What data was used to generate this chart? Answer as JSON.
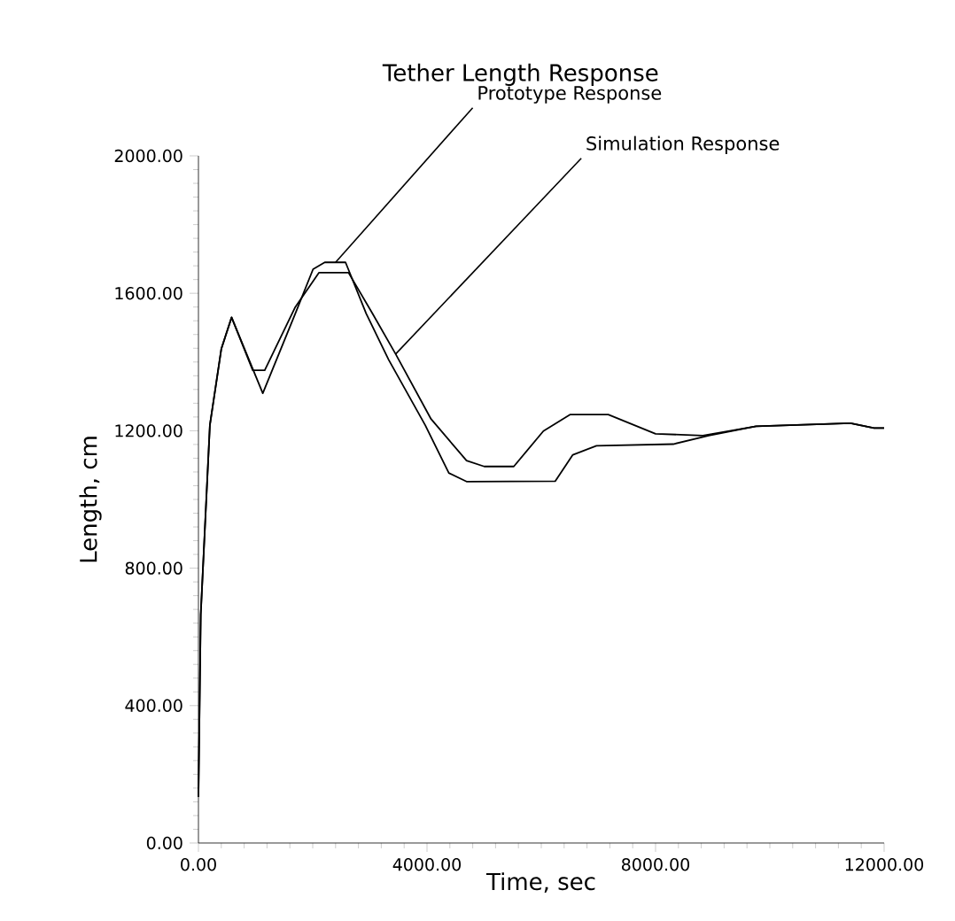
{
  "chart_data": {
    "type": "line",
    "title": "Tether Length Response",
    "xlabel": "Time, sec",
    "ylabel": "Length, cm",
    "xlim": [
      0,
      12000
    ],
    "ylim": [
      0,
      2000
    ],
    "xticks": [
      {
        "value": 0,
        "label": "0.00"
      },
      {
        "value": 4000,
        "label": "4000.00"
      },
      {
        "value": 8000,
        "label": "8000.00"
      },
      {
        "value": 12000,
        "label": "12000.00"
      }
    ],
    "yticks": [
      {
        "value": 0,
        "label": "0.00"
      },
      {
        "value": 400,
        "label": "400.00"
      },
      {
        "value": 800,
        "label": "800.00"
      },
      {
        "value": 1200,
        "label": "1200.00"
      },
      {
        "value": 1600,
        "label": "1600.00"
      },
      {
        "value": 2000,
        "label": "2000.00"
      }
    ],
    "marker": "none",
    "line_style": "solid",
    "series": [
      {
        "color": "#000000",
        "x": [
          0,
          40,
          200,
          400,
          580,
          1126,
          1695,
          2006,
          2210,
          2574,
          2936,
          3328,
          3969,
          4382,
          4692,
          6243,
          6552,
          6966,
          8310,
          8930,
          9758,
          11411,
          11823,
          12000
        ],
        "values": [
          134,
          665,
          1216,
          1438,
          1530,
          1309,
          1541,
          1670,
          1690,
          1690,
          1541,
          1407,
          1216,
          1077,
          1052,
          1053,
          1130,
          1156,
          1161,
          1186,
          1213,
          1222,
          1208,
          1208
        ]
      },
      {
        "color": "#000000",
        "x": [
          0,
          40,
          200,
          400,
          580,
          950,
          1160,
          1695,
          2108,
          2626,
          3039,
          3452,
          4071,
          4692,
          5002,
          5519,
          6037,
          6502,
          7172,
          8000,
          8828,
          9758,
          11411,
          11823,
          12000
        ],
        "values": [
          134,
          665,
          1216,
          1438,
          1530,
          1376,
          1376,
          1560,
          1660,
          1660,
          1543,
          1423,
          1234,
          1113,
          1096,
          1096,
          1199,
          1247,
          1247,
          1191,
          1186,
          1213,
          1222,
          1208,
          1208
        ]
      }
    ],
    "annotations": [
      {
        "text": "Prototype Response",
        "x": 2400,
        "y": 1690
      },
      {
        "text": "Simulation Response",
        "x": 3450,
        "y": 1423
      }
    ]
  }
}
